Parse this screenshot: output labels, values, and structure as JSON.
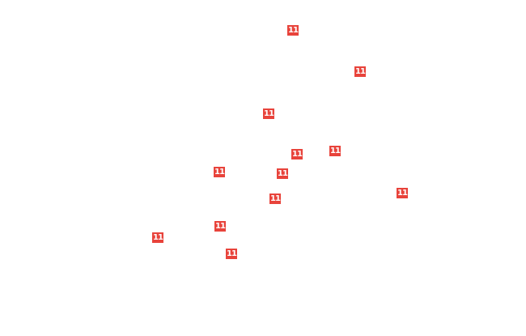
{
  "marker_color": "#e8433b",
  "markers": [
    {
      "label": "11"
    },
    {
      "label": "11"
    },
    {
      "label": "11"
    },
    {
      "label": "11"
    },
    {
      "label": "11"
    },
    {
      "label": "11"
    },
    {
      "label": "11"
    },
    {
      "label": "11"
    },
    {
      "label": "11"
    },
    {
      "label": "11"
    },
    {
      "label": "11"
    },
    {
      "label": "11"
    }
  ]
}
